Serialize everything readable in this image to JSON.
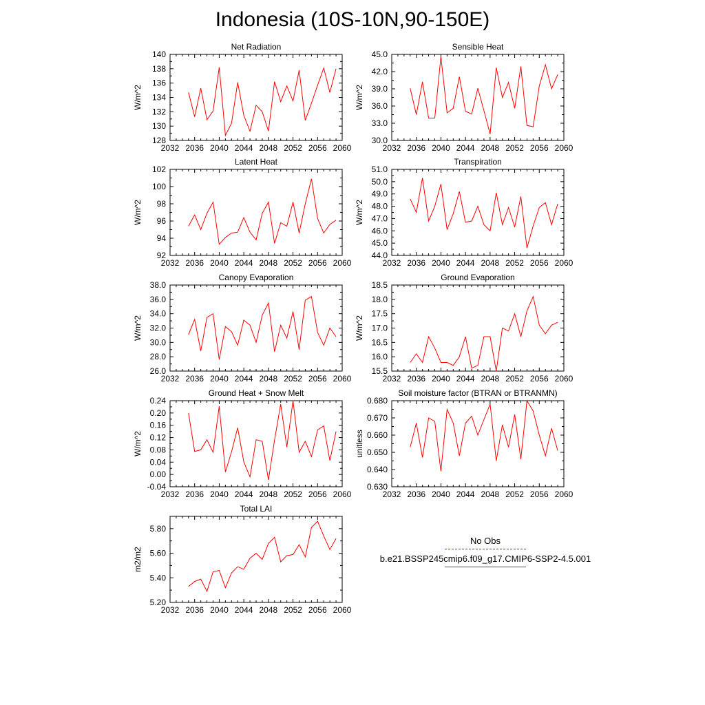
{
  "title": "Indonesia (10S-10N,90-150E)",
  "legend": {
    "obs_label": "No Obs",
    "obs_color": "#3a3aa0",
    "model_label": "b.e21.BSSP245cmip6.f09_g17.CMIP6-SSP2-4.5.001",
    "model_color": "#ff0000"
  },
  "chart_data": [
    {
      "type": "line",
      "title": "Net Radiation",
      "ylabel": "W/m^2",
      "xlim": [
        2032,
        2060
      ],
      "ylim": [
        128,
        140
      ],
      "xticks": [
        "2032",
        "2036",
        "2040",
        "2044",
        "2048",
        "2052",
        "2056",
        "2060"
      ],
      "yticks": [
        "128",
        "130",
        "132",
        "134",
        "136",
        "138",
        "140"
      ],
      "series": [
        {
          "x": [
            2035,
            2036,
            2037,
            2038,
            2039,
            2040,
            2041,
            2042,
            2043,
            2044,
            2045,
            2046,
            2047,
            2048,
            2049,
            2050,
            2051,
            2052,
            2053,
            2054,
            2055,
            2056,
            2057,
            2058,
            2059
          ],
          "values": [
            134.7,
            131.3,
            135.3,
            130.9,
            132.1,
            138.2,
            128.7,
            130.4,
            136.1,
            131.5,
            129.3,
            132.9,
            132.0,
            129.3,
            136.2,
            133.4,
            135.6,
            133.5,
            137.8,
            130.8,
            133.2,
            135.7,
            138.1,
            134.7,
            138.0
          ]
        }
      ]
    },
    {
      "type": "line",
      "title": "Sensible Heat",
      "ylabel": "W/m^2",
      "xlim": [
        2032,
        2060
      ],
      "ylim": [
        30,
        45
      ],
      "xticks": [
        "2032",
        "2036",
        "2040",
        "2044",
        "2048",
        "2052",
        "2056",
        "2060"
      ],
      "yticks": [
        "30.0",
        "33.0",
        "36.0",
        "39.0",
        "42.0",
        "45.0"
      ],
      "series": [
        {
          "x": [
            2035,
            2036,
            2037,
            2038,
            2039,
            2040,
            2041,
            2042,
            2043,
            2044,
            2045,
            2046,
            2047,
            2048,
            2049,
            2050,
            2051,
            2052,
            2053,
            2054,
            2055,
            2056,
            2057,
            2058,
            2059
          ],
          "values": [
            39.1,
            34.5,
            40.2,
            33.9,
            33.9,
            44.6,
            34.8,
            35.6,
            41.1,
            35.1,
            34.6,
            39.1,
            35.2,
            31.1,
            42.7,
            37.5,
            40.1,
            35.6,
            42.9,
            32.6,
            32.4,
            39.5,
            43.2,
            39.0,
            41.5
          ]
        }
      ]
    },
    {
      "type": "line",
      "title": "Latent Heat",
      "ylabel": "W/m^2",
      "xlim": [
        2032,
        2060
      ],
      "ylim": [
        92,
        102
      ],
      "xticks": [
        "2032",
        "2036",
        "2040",
        "2044",
        "2048",
        "2052",
        "2056",
        "2060"
      ],
      "yticks": [
        "92",
        "94",
        "96",
        "98",
        "100",
        "102"
      ],
      "series": [
        {
          "x": [
            2035,
            2036,
            2037,
            2038,
            2039,
            2040,
            2041,
            2042,
            2043,
            2044,
            2045,
            2046,
            2047,
            2048,
            2049,
            2050,
            2051,
            2052,
            2053,
            2054,
            2055,
            2056,
            2057,
            2058,
            2059
          ],
          "values": [
            95.4,
            96.7,
            95.0,
            96.9,
            98.2,
            93.3,
            94.1,
            94.6,
            94.7,
            96.4,
            94.7,
            93.8,
            96.9,
            98.2,
            93.4,
            95.8,
            95.4,
            98.2,
            94.6,
            98.0,
            100.9,
            96.3,
            94.6,
            95.6,
            96.1
          ]
        }
      ]
    },
    {
      "type": "line",
      "title": "Transpiration",
      "ylabel": "W/m^2",
      "xlim": [
        2032,
        2060
      ],
      "ylim": [
        44,
        51
      ],
      "xticks": [
        "2032",
        "2036",
        "2040",
        "2044",
        "2048",
        "2052",
        "2056",
        "2060"
      ],
      "yticks": [
        "44.0",
        "45.0",
        "46.0",
        "47.0",
        "48.0",
        "49.0",
        "50.0",
        "51.0"
      ],
      "series": [
        {
          "x": [
            2035,
            2036,
            2037,
            2038,
            2039,
            2040,
            2041,
            2042,
            2043,
            2044,
            2045,
            2046,
            2047,
            2048,
            2049,
            2050,
            2051,
            2052,
            2053,
            2054,
            2055,
            2056,
            2057,
            2058,
            2059
          ],
          "values": [
            48.6,
            47.5,
            50.3,
            46.8,
            48.0,
            49.8,
            46.1,
            47.4,
            49.2,
            46.7,
            46.8,
            48.0,
            46.5,
            46.0,
            49.1,
            46.5,
            47.9,
            46.3,
            48.8,
            44.6,
            46.4,
            47.9,
            48.3,
            46.5,
            48.2
          ]
        }
      ]
    },
    {
      "type": "line",
      "title": "Canopy Evaporation",
      "ylabel": "W/m^2",
      "xlim": [
        2032,
        2060
      ],
      "ylim": [
        26,
        38
      ],
      "xticks": [
        "2032",
        "2036",
        "2040",
        "2044",
        "2048",
        "2052",
        "2056",
        "2060"
      ],
      "yticks": [
        "26.0",
        "28.0",
        "30.0",
        "32.0",
        "34.0",
        "36.0",
        "38.0"
      ],
      "series": [
        {
          "x": [
            2035,
            2036,
            2037,
            2038,
            2039,
            2040,
            2041,
            2042,
            2043,
            2044,
            2045,
            2046,
            2047,
            2048,
            2049,
            2050,
            2051,
            2052,
            2053,
            2054,
            2055,
            2056,
            2057,
            2058,
            2059
          ],
          "values": [
            31.1,
            33.2,
            28.8,
            33.5,
            34.0,
            27.6,
            32.2,
            31.5,
            29.6,
            33.1,
            32.4,
            30.0,
            33.8,
            35.5,
            28.7,
            32.4,
            30.6,
            34.3,
            29.0,
            35.9,
            36.4,
            31.4,
            29.6,
            32.0,
            30.8
          ]
        }
      ]
    },
    {
      "type": "line",
      "title": "Ground Evaporation",
      "ylabel": "W/m^2",
      "xlim": [
        2032,
        2060
      ],
      "ylim": [
        15.5,
        18.5
      ],
      "xticks": [
        "2032",
        "2036",
        "2040",
        "2044",
        "2048",
        "2052",
        "2056",
        "2060"
      ],
      "yticks": [
        "15.5",
        "16.0",
        "16.5",
        "17.0",
        "17.5",
        "18.0",
        "18.5"
      ],
      "series": [
        {
          "x": [
            2035,
            2036,
            2037,
            2038,
            2039,
            2040,
            2041,
            2042,
            2043,
            2044,
            2045,
            2046,
            2047,
            2048,
            2049,
            2050,
            2051,
            2052,
            2053,
            2054,
            2055,
            2056,
            2057,
            2058,
            2059
          ],
          "values": [
            15.8,
            16.1,
            15.8,
            16.7,
            16.3,
            15.8,
            15.8,
            15.7,
            16.0,
            16.7,
            15.6,
            15.7,
            16.7,
            16.7,
            15.5,
            17.0,
            16.9,
            17.5,
            16.7,
            17.6,
            18.1,
            17.1,
            16.8,
            17.1,
            17.2
          ]
        }
      ]
    },
    {
      "type": "line",
      "title": "Ground Heat + Snow Melt",
      "ylabel": "W/m^2",
      "xlim": [
        2032,
        2060
      ],
      "ylim": [
        -0.04,
        0.24
      ],
      "xticks": [
        "2032",
        "2036",
        "2040",
        "2044",
        "2048",
        "2052",
        "2056",
        "2060"
      ],
      "yticks": [
        "-0.04",
        "0.00",
        "0.04",
        "0.08",
        "0.12",
        "0.16",
        "0.20",
        "0.24"
      ],
      "series": [
        {
          "x": [
            2035,
            2036,
            2037,
            2038,
            2039,
            2040,
            2041,
            2042,
            2043,
            2044,
            2045,
            2046,
            2047,
            2048,
            2049,
            2050,
            2051,
            2052,
            2053,
            2054,
            2055,
            2056,
            2057,
            2058,
            2059
          ],
          "values": [
            0.2,
            0.075,
            0.08,
            0.113,
            0.072,
            0.222,
            0.008,
            0.074,
            0.152,
            0.041,
            -0.008,
            0.113,
            0.108,
            -0.018,
            0.112,
            0.229,
            0.089,
            0.245,
            0.072,
            0.108,
            0.058,
            0.145,
            0.158,
            0.045,
            0.14
          ]
        }
      ]
    },
    {
      "type": "line",
      "title": "Soil moisture factor (BTRAN or BTRANMN)",
      "ylabel": "unitless",
      "xlim": [
        2032,
        2060
      ],
      "ylim": [
        0.63,
        0.68
      ],
      "xticks": [
        "2032",
        "2036",
        "2040",
        "2044",
        "2048",
        "2052",
        "2056",
        "2060"
      ],
      "yticks": [
        "0.630",
        "0.640",
        "0.650",
        "0.660",
        "0.670",
        "0.680"
      ],
      "series": [
        {
          "x": [
            2035,
            2036,
            2037,
            2038,
            2039,
            2040,
            2041,
            2042,
            2043,
            2044,
            2045,
            2046,
            2047,
            2048,
            2049,
            2050,
            2051,
            2052,
            2053,
            2054,
            2055,
            2056,
            2057,
            2058,
            2059
          ],
          "values": [
            0.653,
            0.667,
            0.647,
            0.67,
            0.668,
            0.639,
            0.675,
            0.667,
            0.648,
            0.667,
            0.671,
            0.66,
            0.669,
            0.678,
            0.645,
            0.666,
            0.653,
            0.672,
            0.646,
            0.68,
            0.674,
            0.66,
            0.648,
            0.664,
            0.651
          ]
        }
      ]
    },
    {
      "type": "line",
      "title": "Total LAI",
      "ylabel": "m2/m2",
      "xlim": [
        2032,
        2060
      ],
      "ylim": [
        5.2,
        5.9
      ],
      "xticks": [
        "2032",
        "2036",
        "2040",
        "2044",
        "2048",
        "2052",
        "2056",
        "2060"
      ],
      "yticks": [
        "5.20",
        "5.40",
        "5.60",
        "5.80"
      ],
      "series": [
        {
          "x": [
            2035,
            2036,
            2037,
            2038,
            2039,
            2040,
            2041,
            2042,
            2043,
            2044,
            2045,
            2046,
            2047,
            2048,
            2049,
            2050,
            2051,
            2052,
            2053,
            2054,
            2055,
            2056,
            2057,
            2058,
            2059
          ],
          "values": [
            5.33,
            5.37,
            5.39,
            5.29,
            5.45,
            5.46,
            5.32,
            5.44,
            5.49,
            5.47,
            5.56,
            5.6,
            5.55,
            5.68,
            5.73,
            5.53,
            5.58,
            5.59,
            5.67,
            5.57,
            5.81,
            5.86,
            5.74,
            5.63,
            5.72
          ]
        }
      ]
    }
  ]
}
